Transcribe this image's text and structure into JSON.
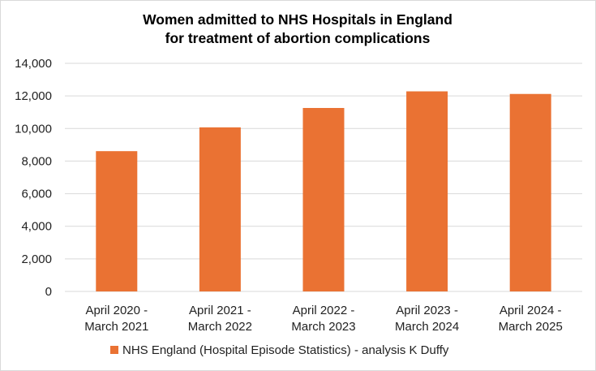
{
  "chart_data": {
    "type": "bar",
    "title": [
      "Women admitted to NHS Hospitals in England",
      "for treatment of abortion complications"
    ],
    "categories": [
      [
        "April 2020 -",
        "March 2021"
      ],
      [
        "April 2021 -",
        "March 2022"
      ],
      [
        "April 2022 -",
        "March 2023"
      ],
      [
        "April 2023 -",
        "March 2024"
      ],
      [
        "April 2024 -",
        "March 2025"
      ]
    ],
    "series": [
      {
        "name": "NHS England (Hospital Episode Statistics) - analysis K Duffy",
        "values": [
          8610,
          10070,
          11260,
          12280,
          12120
        ],
        "color": "#EA7233"
      }
    ],
    "xlabel": "",
    "ylabel": "",
    "ylim": [
      0,
      14000
    ],
    "yticks": [
      0,
      2000,
      4000,
      6000,
      8000,
      10000,
      12000,
      14000
    ],
    "ytick_labels": [
      "0",
      "2,000",
      "4,000",
      "6,000",
      "8,000",
      "10,000",
      "12,000",
      "14,000"
    ],
    "grid": true,
    "legend": "bottom"
  }
}
